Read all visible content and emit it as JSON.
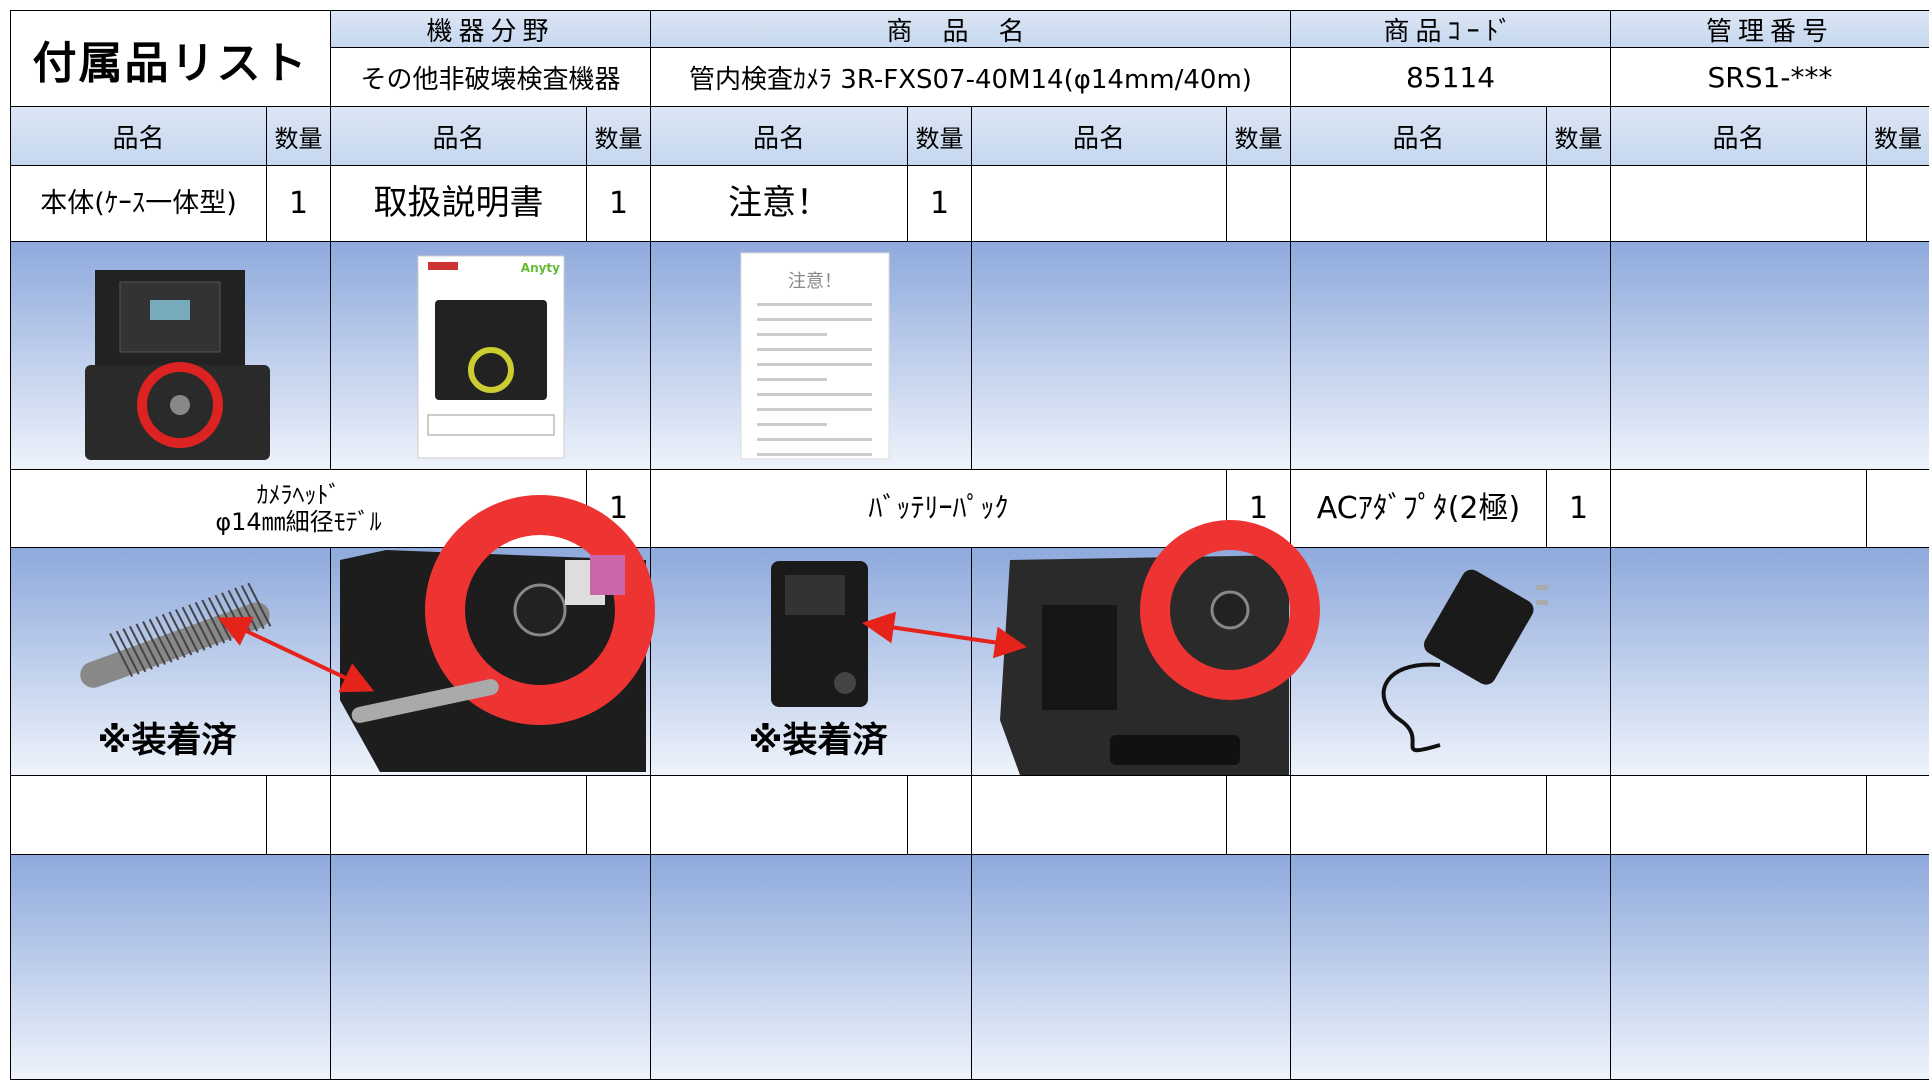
{
  "header": {
    "title": "付属品リスト",
    "category": {
      "label": "機器分野",
      "value": "その他非破壊検査機器"
    },
    "product": {
      "label": "商品名",
      "value": "管内検査ｶﾒﾗ 3R-FXS07-40M14(φ14mm/40m)"
    },
    "code": {
      "label": "商品ｺｰﾄﾞ",
      "value": "85114"
    },
    "management": {
      "label": "管理番号",
      "value": "SRS1-***"
    }
  },
  "column_headers": [
    {
      "name": "品名",
      "qty": "数量"
    },
    {
      "name": "品名",
      "qty": "数量"
    },
    {
      "name": "品名",
      "qty": "数量"
    },
    {
      "name": "品名",
      "qty": "数量"
    },
    {
      "name": "品名",
      "qty": "数量"
    },
    {
      "name": "品名",
      "qty": "数量"
    }
  ],
  "rows": [
    {
      "items": [
        {
          "name": "本体(ｹｰｽ一体型)",
          "qty": 1
        },
        {
          "name": "取扱説明書",
          "qty": 1
        },
        {
          "name": "注意！",
          "qty": 1
        }
      ]
    },
    {
      "items": [
        {
          "name": "ｶﾒﾗﾍｯﾄﾞ\nφ14㎜細径ﾓﾃﾞﾙ",
          "qty": 1
        },
        {
          "name": "ﾊﾞｯﾃﾘｰﾊﾟｯｸ",
          "qty": 1
        },
        {
          "name": "ACｱﾀﾞﾌﾟﾀ(2極)",
          "qty": 1
        }
      ]
    }
  ],
  "annotations": [
    "※装着済",
    "※装着済"
  ],
  "note_image_title": "注意！"
}
